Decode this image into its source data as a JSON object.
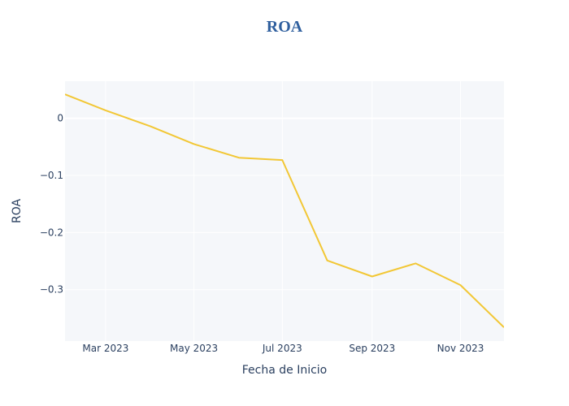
{
  "chart_data": {
    "type": "line",
    "title": "ROA",
    "xlabel": "Fecha de Inicio",
    "ylabel": "ROA",
    "x": [
      "2023-02-01",
      "2023-03-01",
      "2023-04-01",
      "2023-05-01",
      "2023-06-01",
      "2023-07-01",
      "2023-08-01",
      "2023-09-01",
      "2023-10-01",
      "2023-11-01",
      "2023-12-01"
    ],
    "series": [
      {
        "values": [
          0.042,
          0.014,
          -0.014,
          -0.045,
          -0.069,
          -0.073,
          -0.249,
          -0.277,
          -0.254,
          -0.292,
          -0.366
        ]
      }
    ],
    "xlim": [
      "2023-02-01",
      "2023-12-01"
    ],
    "ylim": [
      -0.39,
      0.065
    ],
    "x_ticks": [
      {
        "date": "2023-03-01",
        "label": "Mar 2023"
      },
      {
        "date": "2023-05-01",
        "label": "May 2023"
      },
      {
        "date": "2023-07-01",
        "label": "Jul 2023"
      },
      {
        "date": "2023-09-01",
        "label": "Sep 2023"
      },
      {
        "date": "2023-11-01",
        "label": "Nov 2023"
      }
    ],
    "y_ticks": [
      {
        "value": 0,
        "label": "0"
      },
      {
        "value": -0.1,
        "label": "−0.1"
      },
      {
        "value": -0.2,
        "label": "−0.2"
      },
      {
        "value": -0.3,
        "label": "−0.3"
      }
    ],
    "grid": true,
    "colors": {
      "line": "#f2c735",
      "title": "#2f5f9e",
      "plot_bg": "#f5f7fa",
      "grid": "#ffffff"
    }
  }
}
